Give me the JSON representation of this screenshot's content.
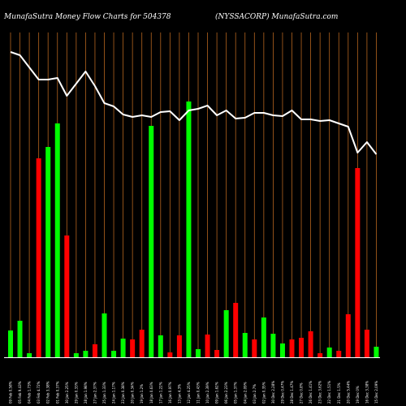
{
  "header": {
    "left": "MunafaSutra  Money Flow  Charts for 504378",
    "right": "(NYSSACORP) MunafaSutra.com"
  },
  "chart_data": {
    "type": "bar",
    "bars": [
      {
        "label": "09 Feb 0.58%",
        "value": 33,
        "color": "green"
      },
      {
        "label": "05 Feb 9.43%",
        "value": 45,
        "color": "green"
      },
      {
        "label": "04 Feb 1.73%",
        "value": 5,
        "color": "green"
      },
      {
        "label": "03 Feb 4.72%",
        "value": 245,
        "color": "red"
      },
      {
        "label": "02 Feb 3.38%",
        "value": 259,
        "color": "green"
      },
      {
        "label": "01 Feb 0.37%",
        "value": 288,
        "color": "green"
      },
      {
        "label": "30 Jan 2.25%",
        "value": 150,
        "color": "red"
      },
      {
        "label": "29 Jan 0.33%",
        "value": 5,
        "color": "green"
      },
      {
        "label": "28 Jan 1.98%",
        "value": 8,
        "color": "green"
      },
      {
        "label": "27 Jan 2.37%",
        "value": 16,
        "color": "red"
      },
      {
        "label": "25 Jan 1.33%",
        "value": 54,
        "color": "green"
      },
      {
        "label": "24 Jan 1.17%",
        "value": 8,
        "color": "green"
      },
      {
        "label": "23 Jan 0.38%",
        "value": 23,
        "color": "green"
      },
      {
        "label": "20 Jan 0.34%",
        "value": 22,
        "color": "red"
      },
      {
        "label": "19 Jan 1.2%",
        "value": 34,
        "color": "red"
      },
      {
        "label": "18 Jan 0.63%",
        "value": 285,
        "color": "green"
      },
      {
        "label": "17 Jan 1.22%",
        "value": 27,
        "color": "green"
      },
      {
        "label": "16 Jan 0.97%",
        "value": 6,
        "color": "red"
      },
      {
        "label": "13 Jan 4.3%",
        "value": 27,
        "color": "red"
      },
      {
        "label": "12 Jan 4.25%",
        "value": 315,
        "color": "green"
      },
      {
        "label": "11 Jan 0.43%",
        "value": 10,
        "color": "green"
      },
      {
        "label": "10 Jan 2.39%",
        "value": 28,
        "color": "red"
      },
      {
        "label": "09 Jan 1.62%",
        "value": 9,
        "color": "red"
      },
      {
        "label": "06 Jan 2.23%",
        "value": 58,
        "color": "green"
      },
      {
        "label": "05 Jan 1.37%",
        "value": 67,
        "color": "red"
      },
      {
        "label": "04 Jan 2.09%",
        "value": 30,
        "color": "green"
      },
      {
        "label": "03 Jan 2.7%",
        "value": 22,
        "color": "red"
      },
      {
        "label": "02 Jan 0.35%",
        "value": 49,
        "color": "green"
      },
      {
        "label": "30 Dec 2.28%",
        "value": 29,
        "color": "green"
      },
      {
        "label": "29 Dec 0.47%",
        "value": 17,
        "color": "green"
      },
      {
        "label": "28 Dec 1.47%",
        "value": 22,
        "color": "red"
      },
      {
        "label": "27 Dec 0.8%",
        "value": 24,
        "color": "red"
      },
      {
        "label": "26 Dec 1.41%",
        "value": 32,
        "color": "red"
      },
      {
        "label": "23 Dec 3.62%",
        "value": 5,
        "color": "red"
      },
      {
        "label": "22 Dec 1.51%",
        "value": 12,
        "color": "green"
      },
      {
        "label": "21 Dec 1.5%",
        "value": 8,
        "color": "red"
      },
      {
        "label": "20 Dec 5.44%",
        "value": 53,
        "color": "red"
      },
      {
        "label": "19 Dec 0%",
        "value": 233,
        "color": "red"
      },
      {
        "label": "16 Dec 3.38%",
        "value": 34,
        "color": "red"
      },
      {
        "label": "15 Dec 2.09%",
        "value": 13,
        "color": "green"
      }
    ],
    "line": [
      376,
      372,
      357,
      342,
      342,
      344,
      322,
      337,
      352,
      334,
      313,
      309,
      299,
      296,
      298,
      296,
      302,
      303,
      292,
      304,
      306,
      310,
      298,
      304,
      294,
      295,
      301,
      301,
      298,
      297,
      304,
      293,
      293,
      291,
      292,
      288,
      284,
      252,
      265,
      250
    ],
    "ylim": [
      0,
      400
    ],
    "colors": {
      "background": "#000000",
      "green": "#00ff00",
      "red": "#ff0000",
      "line": "#ffffff",
      "grid": "#b4641e",
      "axis": "#ffffff"
    }
  }
}
